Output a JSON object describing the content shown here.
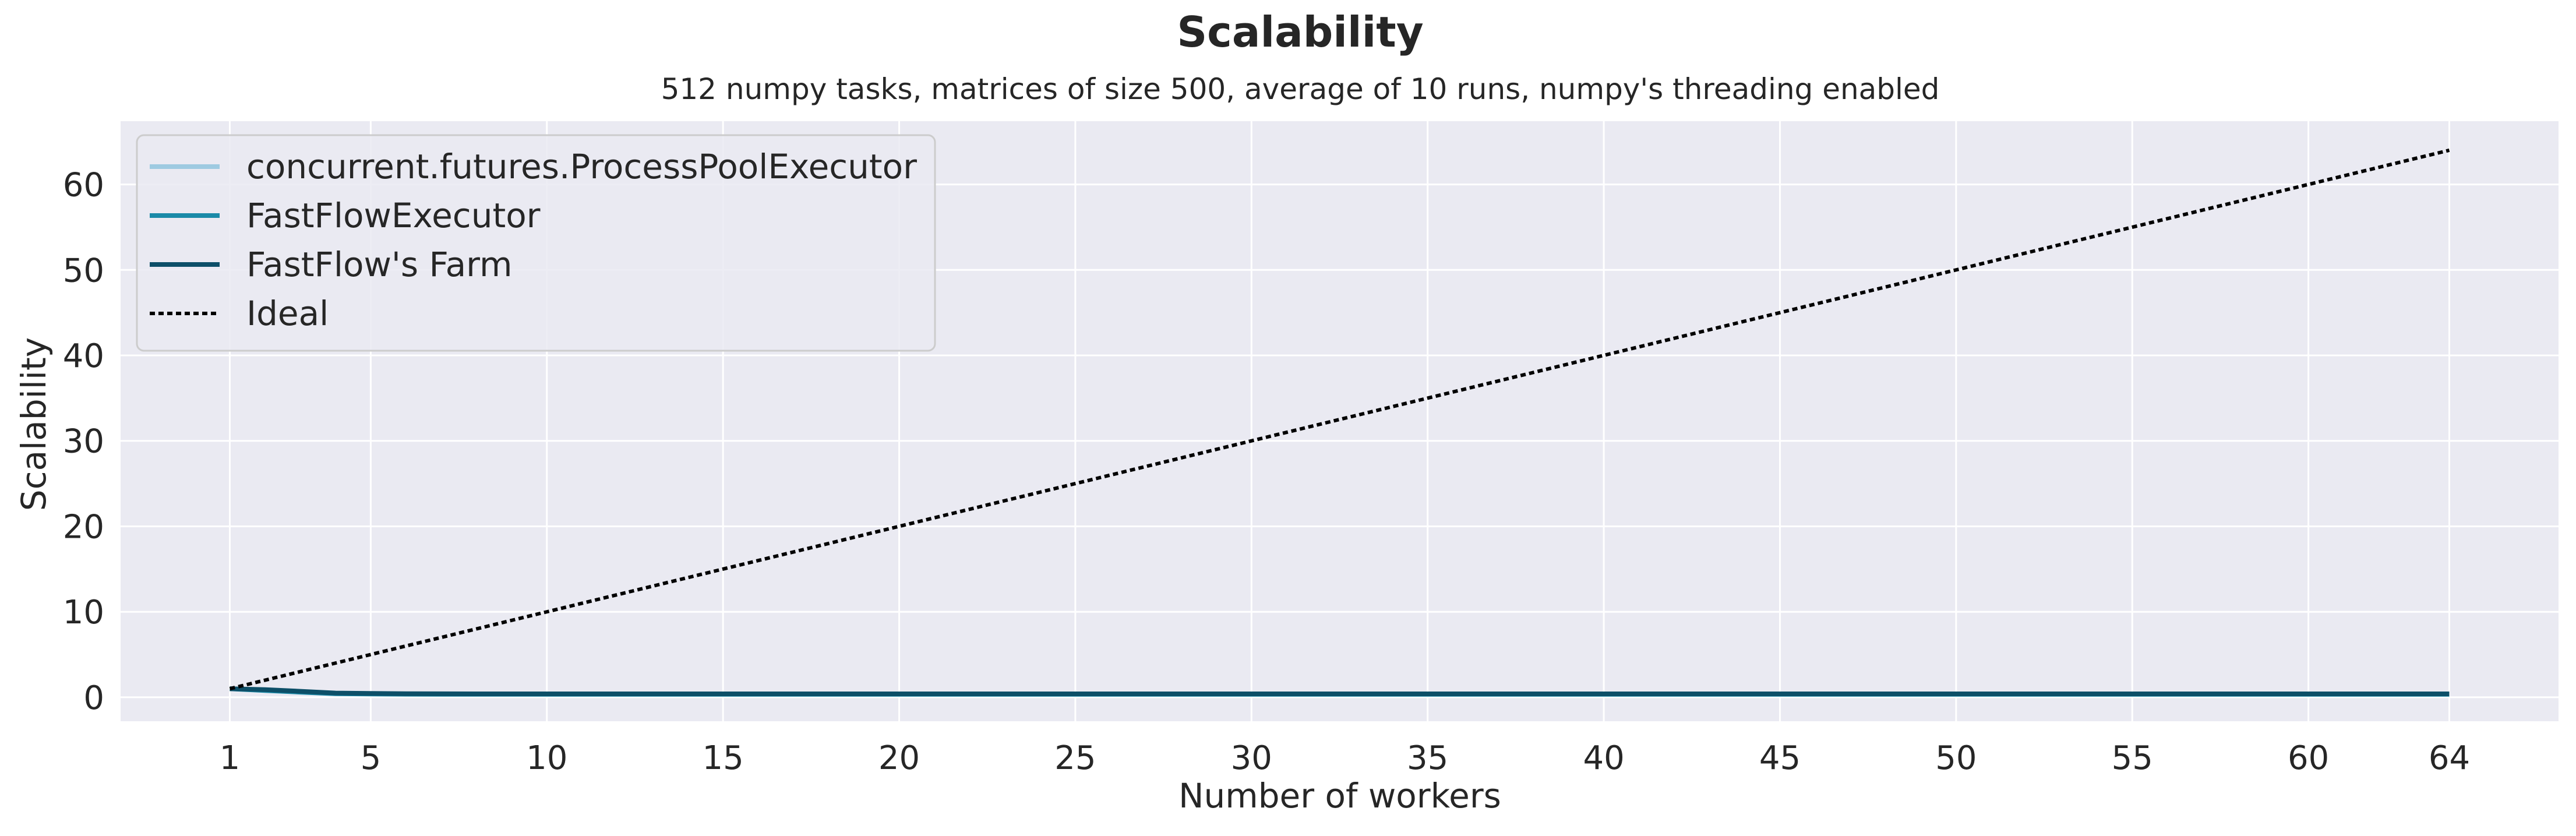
{
  "chart_data": {
    "type": "line",
    "title": "Scalability",
    "subtitle": "512 numpy tasks, matrices of size 500, average of 10 runs, numpy's threading enabled",
    "xlabel": "Number of workers",
    "ylabel": "Scalability",
    "xlim": [
      -2.1,
      67.1
    ],
    "ylim": [
      -2.8,
      67.4
    ],
    "x_ticks": [
      1,
      5,
      10,
      15,
      20,
      25,
      30,
      35,
      40,
      45,
      50,
      55,
      60,
      64
    ],
    "y_ticks": [
      0,
      10,
      20,
      30,
      40,
      50,
      60
    ],
    "grid": true,
    "legend_position": "top-left",
    "colors": {
      "background": "#eaeaf2",
      "grid": "#ffffff",
      "text": "#262626"
    },
    "series": [
      {
        "name": "concurrent.futures.ProcessPoolExecutor",
        "color": "#9ecae1",
        "dash": "solid",
        "x": [
          1,
          2,
          3,
          4,
          5,
          6,
          8,
          10,
          16,
          32,
          64
        ],
        "y": [
          1.0,
          0.85,
          0.65,
          0.45,
          0.4,
          0.38,
          0.37,
          0.36,
          0.36,
          0.36,
          0.36
        ]
      },
      {
        "name": "FastFlowExecutor",
        "color": "#1a8aa8",
        "dash": "solid",
        "x": [
          1,
          2,
          3,
          4,
          5,
          6,
          8,
          10,
          16,
          32,
          64
        ],
        "y": [
          1.0,
          0.8,
          0.6,
          0.42,
          0.38,
          0.36,
          0.35,
          0.35,
          0.35,
          0.35,
          0.35
        ]
      },
      {
        "name": "FastFlow's Farm",
        "color": "#0d4f68",
        "dash": "solid",
        "x": [
          1,
          2,
          3,
          4,
          5,
          6,
          8,
          10,
          16,
          32,
          64
        ],
        "y": [
          1.0,
          0.9,
          0.7,
          0.5,
          0.45,
          0.42,
          0.4,
          0.4,
          0.4,
          0.4,
          0.4
        ]
      },
      {
        "name": "Ideal",
        "color": "#000000",
        "dash": "dotted",
        "x": [
          1,
          64
        ],
        "y": [
          1,
          64
        ]
      }
    ]
  }
}
